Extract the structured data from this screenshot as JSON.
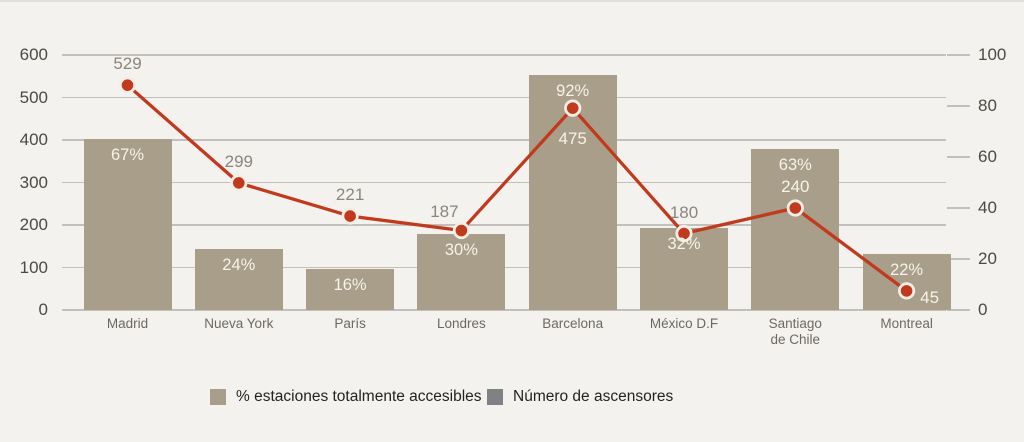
{
  "chart_data": {
    "type": "bar+line combo",
    "categories": [
      "Madrid",
      "Nueva York",
      "París",
      "Londres",
      "Barcelona",
      "México D.F",
      "Santiago de Chile",
      "Montreal"
    ],
    "x_tick_labels": [
      "Madrid",
      "Nueva York",
      "París",
      "Londres",
      "Barcelona",
      "México D.F",
      "Santiago\nde Chile",
      "Montreal"
    ],
    "series": [
      {
        "name": "% estaciones totalmente accesibles",
        "type": "bar",
        "axis": "right",
        "unit": "%",
        "values": [
          67,
          24,
          16,
          30,
          92,
          32,
          63,
          22
        ],
        "data_labels": [
          "67%",
          "24%",
          "16%",
          "30%",
          "92%",
          "32%",
          "63%",
          "22%"
        ],
        "color": "#a89e8a"
      },
      {
        "name": "Número de ascensores",
        "type": "line",
        "axis": "left",
        "values": [
          529,
          299,
          221,
          187,
          475,
          180,
          240,
          45
        ],
        "data_labels": [
          "529",
          "299",
          "221",
          "187",
          "475",
          "180",
          "240",
          "45"
        ],
        "label_pos": [
          "above",
          "above",
          "above",
          "above-left",
          "below",
          "above",
          "above",
          "right"
        ],
        "color": "#c23a1d",
        "marker": "circle"
      }
    ],
    "left_axis": {
      "ticks": [
        0,
        100,
        200,
        300,
        400,
        500,
        600
      ],
      "range": [
        0,
        600
      ]
    },
    "right_axis": {
      "ticks": [
        0,
        20,
        40,
        60,
        80,
        100
      ],
      "range": [
        0,
        100
      ]
    },
    "grid": "horizontal gridlines at left-axis ticks",
    "legend_position": "bottom"
  },
  "legend": {
    "items": [
      {
        "label": "% estaciones totalmente accesibles",
        "color": "#a89e8a"
      },
      {
        "label": "Número de ascensores",
        "color": "#7f8184"
      }
    ]
  },
  "colors": {
    "background": "#f3f2ef",
    "top_strip": "#e0ddda",
    "bar": "#a89e8a",
    "line": "#c23a1d",
    "marker_ring": "#f2eee5",
    "gridline": "#c3c0bc",
    "axis_text": "#4d4945",
    "x_tick_text": "#6e6862",
    "value_text_gray": "#8b857c",
    "value_text_cream": "#f7f3e9",
    "legend_text": "#26231f"
  }
}
